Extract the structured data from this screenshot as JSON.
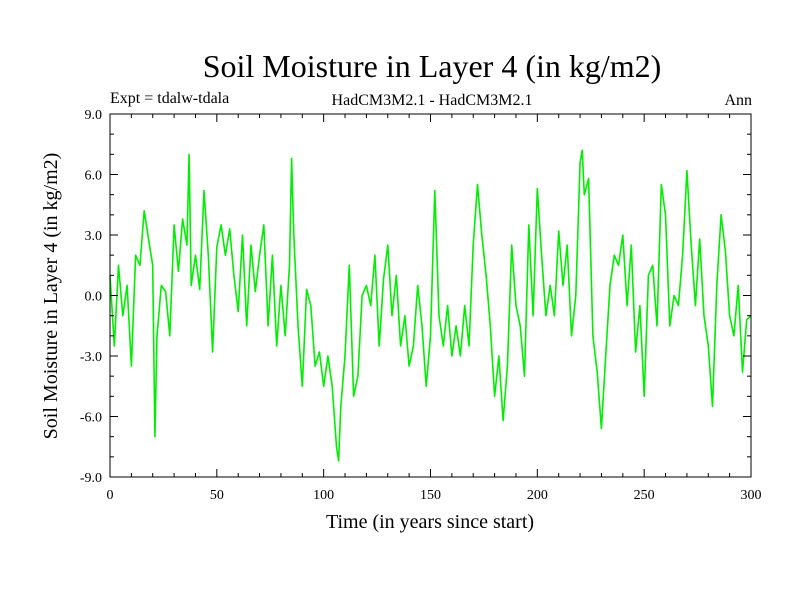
{
  "chart_data": {
    "type": "line",
    "title": "Soil Moisture in Layer 4 (in kg/m2)",
    "subtitle_left": "Expt = tdalw-tdala",
    "subtitle_center": "HadCM3M2.1 - HadCM3M2.1",
    "subtitle_right": "Ann",
    "xlabel": "Time (in years since start)",
    "ylabel": "Soil Moisture in Layer 4 (in kg/m2)",
    "xlim": [
      0,
      300
    ],
    "ylim": [
      -9.0,
      9.0
    ],
    "xticks": [
      "0",
      "50",
      "100",
      "150",
      "200",
      "250",
      "300"
    ],
    "yticks": [
      "-9.0",
      "-6.0",
      "-3.0",
      "0.0",
      "3.0",
      "6.0",
      "9.0"
    ],
    "grid": false,
    "line_color": "#00ee00",
    "series": [
      {
        "x": [
          0,
          2,
          4,
          6,
          8,
          10,
          12,
          14,
          16,
          18,
          20,
          21,
          22,
          24,
          26,
          28,
          30,
          32,
          34,
          36,
          37,
          38,
          40,
          42,
          44,
          46,
          48,
          50,
          52,
          54,
          56,
          58,
          60,
          62,
          64,
          66,
          68,
          70,
          72,
          74,
          76,
          78,
          80,
          82,
          84,
          85,
          86,
          88,
          90,
          92,
          94,
          96,
          98,
          100,
          102,
          104,
          106,
          107,
          108,
          110,
          112,
          114,
          116,
          118,
          120,
          122,
          124,
          126,
          128,
          130,
          132,
          134,
          136,
          138,
          140,
          142,
          144,
          146,
          148,
          150,
          152,
          154,
          156,
          158,
          160,
          162,
          164,
          166,
          168,
          170,
          172,
          174,
          176,
          178,
          180,
          182,
          184,
          186,
          188,
          190,
          192,
          194,
          196,
          198,
          200,
          202,
          204,
          206,
          208,
          210,
          212,
          214,
          216,
          218,
          220,
          221,
          222,
          224,
          226,
          228,
          230,
          232,
          234,
          236,
          238,
          240,
          242,
          244,
          246,
          248,
          250,
          252,
          254,
          256,
          258,
          260,
          262,
          264,
          266,
          268,
          270,
          272,
          274,
          276,
          278,
          280,
          282,
          284,
          286,
          288,
          290,
          292,
          294,
          296,
          298,
          300
        ],
        "y": [
          1.0,
          -2.5,
          1.5,
          -1.0,
          0.5,
          -3.5,
          2.0,
          1.5,
          4.2,
          2.8,
          1.5,
          -7.0,
          -2.0,
          0.5,
          0.2,
          -2.0,
          3.5,
          1.2,
          3.8,
          2.5,
          7.0,
          0.5,
          2.0,
          0.3,
          5.2,
          2.0,
          -2.8,
          2.4,
          3.5,
          2.0,
          3.3,
          1.0,
          -0.8,
          3.0,
          -1.5,
          2.5,
          0.2,
          2.0,
          3.5,
          -1.5,
          2.0,
          -2.5,
          0.5,
          -2.0,
          1.5,
          6.8,
          3.0,
          -1.5,
          -4.5,
          0.3,
          -0.5,
          -3.5,
          -2.8,
          -4.5,
          -3.0,
          -4.5,
          -7.5,
          -8.2,
          -5.5,
          -3.0,
          1.5,
          -5.0,
          -4.0,
          0.0,
          0.5,
          -0.5,
          2.0,
          -2.5,
          0.8,
          2.5,
          -1.0,
          1.0,
          -2.5,
          -1.0,
          -3.5,
          -2.5,
          0.5,
          -1.5,
          -4.5,
          -2.0,
          5.2,
          -1.0,
          -2.5,
          -0.5,
          -3.0,
          -1.5,
          -3.0,
          -0.5,
          -2.5,
          2.5,
          5.5,
          3.0,
          1.0,
          -1.5,
          -5.0,
          -3.0,
          -6.2,
          -3.5,
          2.5,
          -0.5,
          -1.5,
          -4.0,
          3.5,
          -1.0,
          5.3,
          2.0,
          -1.0,
          0.5,
          -1.0,
          3.2,
          0.5,
          2.5,
          -2.0,
          0.0,
          6.6,
          7.2,
          5.0,
          5.8,
          -2.0,
          -3.8,
          -6.6,
          -3.0,
          0.5,
          2.0,
          1.5,
          3.0,
          -0.5,
          2.5,
          -2.8,
          -0.5,
          -5.0,
          1.0,
          1.5,
          -1.5,
          5.5,
          4.0,
          -1.5,
          0.0,
          -0.5,
          2.0,
          6.2,
          2.5,
          -0.5,
          2.8,
          -1.0,
          -2.5,
          -5.5,
          0.5,
          4.0,
          2.2,
          -1.0,
          -2.0,
          0.5,
          -3.8,
          -1.2,
          -1.0
        ]
      }
    ]
  }
}
